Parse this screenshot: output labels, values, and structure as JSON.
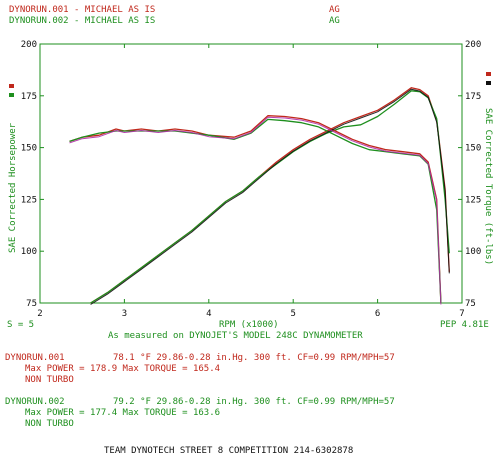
{
  "header": {
    "run1_label": "DYNORUN.001 - MICHAEL AS IS",
    "run1_code": "AG",
    "run2_label": "DYNORUN.002 - MICHAEL AS IS",
    "run2_code": "AG"
  },
  "footer": {
    "smoothing": "S = 5",
    "pep": "PEP 4.81E",
    "measured_on": "As measured on DYNOJET'S MODEL 248C DYNAMOMETER",
    "run1": {
      "name": "DYNORUN.001",
      "conditions": "78.1 °F   29.86-0.28 in.Hg.   300 ft.  CF=0.99  RPM/MPH=57",
      "max": "Max POWER = 178.9  Max TORQUE = 165.4",
      "turbo": "NON TURBO"
    },
    "run2": {
      "name": "DYNORUN.002",
      "conditions": "79.2 °F   29.86-0.28 in.Hg.   300 ft.  CF=0.99  RPM/MPH=57",
      "max": "Max POWER = 177.4  Max TORQUE = 163.6",
      "turbo": "NON TURBO"
    },
    "team": "TEAM DYNOTECH STREET 8 COMPETITION 214-6302878"
  },
  "colors": {
    "run1": "#c0281c",
    "run2": "#1e8f1e",
    "power_overlay": "#b02aa6",
    "torque_overlay": "#111111"
  },
  "chart_data": {
    "type": "line",
    "xlabel": "RPM (x1000)",
    "ylabel_left": "SAE Corrected Horsepower",
    "ylabel_right": "SAE Corrected Torque (ft-lbs)",
    "xlim": [
      2,
      7
    ],
    "ylim": [
      75,
      200
    ],
    "x_ticks": [
      2,
      3,
      4,
      5,
      6,
      7
    ],
    "y_ticks": [
      75,
      100,
      125,
      150,
      175,
      200
    ],
    "grid": false,
    "series": [
      {
        "name": "DYNORUN.001",
        "kind": "horsepower",
        "color": "#c0281c",
        "points": [
          [
            2.6,
            75
          ],
          [
            2.8,
            80
          ],
          [
            3.0,
            86
          ],
          [
            3.2,
            92
          ],
          [
            3.4,
            98
          ],
          [
            3.6,
            104
          ],
          [
            3.8,
            110
          ],
          [
            4.0,
            117
          ],
          [
            4.2,
            124
          ],
          [
            4.4,
            129
          ],
          [
            4.6,
            136
          ],
          [
            4.8,
            143
          ],
          [
            5.0,
            149
          ],
          [
            5.2,
            154
          ],
          [
            5.4,
            158
          ],
          [
            5.6,
            162
          ],
          [
            5.8,
            165
          ],
          [
            6.0,
            168
          ],
          [
            6.2,
            173
          ],
          [
            6.4,
            178.9
          ],
          [
            6.5,
            178
          ],
          [
            6.6,
            175
          ],
          [
            6.7,
            163
          ],
          [
            6.8,
            130
          ],
          [
            6.85,
            90
          ]
        ]
      },
      {
        "name": "DYNORUN.002",
        "kind": "horsepower",
        "color": "#1e8f1e",
        "points": [
          [
            2.6,
            75
          ],
          [
            2.8,
            80
          ],
          [
            3.0,
            86
          ],
          [
            3.2,
            92
          ],
          [
            3.4,
            98
          ],
          [
            3.6,
            104
          ],
          [
            3.8,
            110
          ],
          [
            4.0,
            117
          ],
          [
            4.2,
            124
          ],
          [
            4.4,
            129
          ],
          [
            4.6,
            136
          ],
          [
            4.8,
            142
          ],
          [
            5.0,
            148
          ],
          [
            5.2,
            153
          ],
          [
            5.4,
            157
          ],
          [
            5.6,
            160
          ],
          [
            5.8,
            161
          ],
          [
            6.0,
            165
          ],
          [
            6.2,
            171
          ],
          [
            6.4,
            177.4
          ],
          [
            6.5,
            177
          ],
          [
            6.6,
            174
          ],
          [
            6.7,
            164
          ],
          [
            6.8,
            125
          ],
          [
            6.85,
            99
          ]
        ]
      },
      {
        "name": "DYNORUN.001",
        "kind": "torque",
        "color": "#c0281c",
        "points": [
          [
            2.35,
            153
          ],
          [
            2.5,
            155
          ],
          [
            2.7,
            156
          ],
          [
            2.9,
            159
          ],
          [
            3.0,
            158
          ],
          [
            3.2,
            159
          ],
          [
            3.4,
            158
          ],
          [
            3.6,
            159
          ],
          [
            3.8,
            158
          ],
          [
            4.0,
            156
          ],
          [
            4.3,
            155
          ],
          [
            4.5,
            158
          ],
          [
            4.7,
            165.4
          ],
          [
            4.9,
            165
          ],
          [
            5.1,
            164
          ],
          [
            5.3,
            162
          ],
          [
            5.5,
            158
          ],
          [
            5.7,
            154
          ],
          [
            5.9,
            151
          ],
          [
            6.1,
            149
          ],
          [
            6.3,
            148
          ],
          [
            6.5,
            147
          ],
          [
            6.6,
            143
          ],
          [
            6.7,
            125
          ],
          [
            6.75,
            75
          ]
        ]
      },
      {
        "name": "DYNORUN.002",
        "kind": "torque",
        "color": "#1e8f1e",
        "points": [
          [
            2.35,
            153
          ],
          [
            2.5,
            155
          ],
          [
            2.7,
            157
          ],
          [
            2.9,
            158
          ],
          [
            3.0,
            158
          ],
          [
            3.2,
            158
          ],
          [
            3.4,
            158
          ],
          [
            3.6,
            158
          ],
          [
            3.8,
            157
          ],
          [
            4.0,
            156
          ],
          [
            4.3,
            154
          ],
          [
            4.5,
            157
          ],
          [
            4.7,
            163.6
          ],
          [
            4.9,
            163
          ],
          [
            5.1,
            162
          ],
          [
            5.3,
            160
          ],
          [
            5.5,
            156
          ],
          [
            5.7,
            152
          ],
          [
            5.9,
            149
          ],
          [
            6.1,
            148
          ],
          [
            6.3,
            147
          ],
          [
            6.5,
            146
          ],
          [
            6.6,
            142
          ],
          [
            6.7,
            120
          ],
          [
            6.75,
            75
          ]
        ]
      }
    ]
  }
}
